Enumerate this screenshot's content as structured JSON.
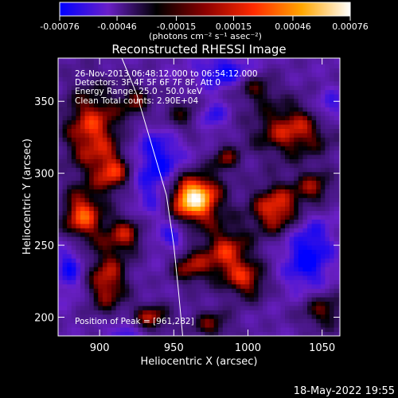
{
  "colorbar": {
    "ticks": [
      "-0.00076",
      "-0.00046",
      "-0.00015",
      "0.00015",
      "0.00046",
      "0.00076"
    ],
    "tick_values": [
      -0.00076,
      -0.00046,
      -0.00015,
      0.00015,
      0.00046,
      0.00076
    ],
    "unit_label": "(photons cm⁻² s⁻¹ asec⁻²)",
    "range": [
      -0.00076,
      0.00076
    ],
    "colors": [
      "#0000ff",
      "#6a1fc8",
      "#000000",
      "#8b0000",
      "#ff2a00",
      "#ffa600",
      "#ffffff"
    ]
  },
  "chart_data": {
    "type": "heatmap",
    "title": "Reconstructed RHESSI Image",
    "xlabel": "Heliocentric X (arcsec)",
    "ylabel": "Heliocentric Y (arcsec)",
    "xlim": [
      872,
      1062
    ],
    "ylim": [
      187,
      380
    ],
    "xticks": [
      900,
      950,
      1000,
      1050
    ],
    "yticks": [
      200,
      250,
      300,
      350
    ],
    "grid": false,
    "annotations": [
      "26-Nov-2013 06:48:12.000 to 06:54:12.000",
      "Detectors: 3F 4F 5F 6F 7F 8F, Att 0",
      "Energy Range: 25.0 - 50.0 keV",
      "Clean    Total counts: 2.90E+04",
      "Position of Peak = [961,282]"
    ],
    "peak": {
      "x": 961,
      "y": 282
    },
    "limb_curve": [
      [
        915,
        380
      ],
      [
        925,
        355
      ],
      [
        935,
        320
      ],
      [
        945,
        285
      ],
      [
        950,
        250
      ],
      [
        953,
        220
      ],
      [
        956,
        187
      ]
    ],
    "sources": [
      {
        "x": 962,
        "y": 283,
        "sx": 13,
        "sy": 12,
        "a": 1.0
      },
      {
        "x": 895,
        "y": 330,
        "sx": 14,
        "sy": 22,
        "a": 0.55
      },
      {
        "x": 888,
        "y": 270,
        "sx": 10,
        "sy": 13,
        "a": 0.6
      },
      {
        "x": 910,
        "y": 300,
        "sx": 9,
        "sy": 10,
        "a": 0.45
      },
      {
        "x": 918,
        "y": 258,
        "sx": 10,
        "sy": 10,
        "a": 0.45
      },
      {
        "x": 905,
        "y": 225,
        "sx": 10,
        "sy": 16,
        "a": 0.5
      },
      {
        "x": 935,
        "y": 200,
        "sx": 9,
        "sy": 7,
        "a": 0.45
      },
      {
        "x": 985,
        "y": 245,
        "sx": 12,
        "sy": 14,
        "a": 0.5
      },
      {
        "x": 960,
        "y": 235,
        "sx": 9,
        "sy": 9,
        "a": 0.4
      },
      {
        "x": 1020,
        "y": 275,
        "sx": 13,
        "sy": 13,
        "a": 0.6
      },
      {
        "x": 1000,
        "y": 225,
        "sx": 10,
        "sy": 10,
        "a": 0.4
      },
      {
        "x": 1030,
        "y": 330,
        "sx": 20,
        "sy": 14,
        "a": 0.5
      },
      {
        "x": 1045,
        "y": 290,
        "sx": 9,
        "sy": 9,
        "a": 0.4
      },
      {
        "x": 1050,
        "y": 205,
        "sx": 12,
        "sy": 10,
        "a": 0.4
      },
      {
        "x": 955,
        "y": 340,
        "sx": 12,
        "sy": 10,
        "a": 0.35
      },
      {
        "x": 985,
        "y": 310,
        "sx": 7,
        "sy": 7,
        "a": 0.35
      },
      {
        "x": 1005,
        "y": 360,
        "sx": 10,
        "sy": 8,
        "a": 0.35
      },
      {
        "x": 975,
        "y": 195,
        "sx": 10,
        "sy": 8,
        "a": 0.35
      },
      {
        "x": 925,
        "y": 350,
        "sx": 8,
        "sy": 10,
        "a": 0.35
      }
    ],
    "negatives": [
      {
        "x": 940,
        "y": 300,
        "sx": 13,
        "sy": 28,
        "a": 0.5
      },
      {
        "x": 1040,
        "y": 245,
        "sx": 12,
        "sy": 22,
        "a": 0.5
      },
      {
        "x": 985,
        "y": 370,
        "sx": 14,
        "sy": 8,
        "a": 0.45
      },
      {
        "x": 880,
        "y": 235,
        "sx": 7,
        "sy": 14,
        "a": 0.4
      },
      {
        "x": 975,
        "y": 340,
        "sx": 8,
        "sy": 8,
        "a": 0.4
      },
      {
        "x": 1055,
        "y": 345,
        "sx": 8,
        "sy": 9,
        "a": 0.4
      },
      {
        "x": 915,
        "y": 190,
        "sx": 8,
        "sy": 6,
        "a": 0.35
      },
      {
        "x": 950,
        "y": 255,
        "sx": 6,
        "sy": 6,
        "a": 0.3
      }
    ]
  },
  "footer": {
    "timestamp": "18-May-2022 19:55"
  }
}
